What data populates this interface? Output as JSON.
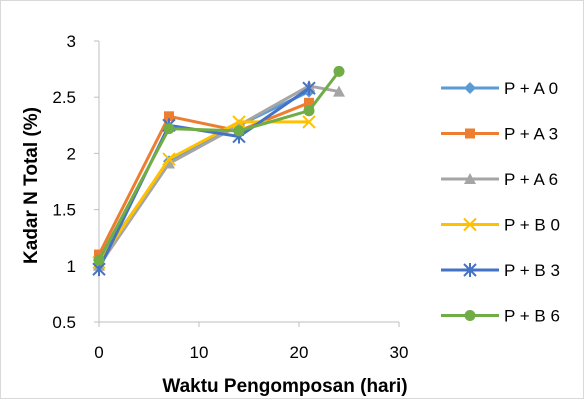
{
  "chart_data": {
    "type": "line",
    "title": "",
    "xlabel": "Waktu Pengomposan (hari)",
    "ylabel": "Kadar N Total (%)",
    "xlim": [
      0,
      30
    ],
    "ylim": [
      0.5,
      3
    ],
    "xticks": [
      0,
      10,
      20,
      30
    ],
    "yticks": [
      0.5,
      1,
      1.5,
      2,
      2.5,
      3
    ],
    "xtick_labels": [
      "0",
      "10",
      "20",
      "30"
    ],
    "ytick_labels": [
      "0.5",
      "1",
      "1.5",
      "2",
      "2.5",
      "3"
    ],
    "grid": false,
    "legend_position": "right",
    "series": [
      {
        "name": "P + A 0",
        "color": "#5B9BD5",
        "marker": "diamond",
        "x": [
          0,
          7,
          14,
          21
        ],
        "y": [
          1.05,
          1.93,
          2.25,
          2.55
        ]
      },
      {
        "name": "P + A 3",
        "color": "#ED7D31",
        "marker": "square",
        "x": [
          0,
          7,
          14,
          21
        ],
        "y": [
          1.1,
          2.33,
          2.2,
          2.45
        ]
      },
      {
        "name": "P + A 6",
        "color": "#A5A5A5",
        "marker": "triangle",
        "x": [
          0,
          7,
          14,
          21,
          24
        ],
        "y": [
          1.0,
          1.91,
          2.25,
          2.6,
          2.55
        ]
      },
      {
        "name": "P + B 0",
        "color": "#FFC000",
        "marker": "x",
        "x": [
          0,
          7,
          14,
          21
        ],
        "y": [
          1.03,
          1.95,
          2.28,
          2.28
        ]
      },
      {
        "name": "P + B 3",
        "color": "#4472C4",
        "marker": "asterisk",
        "x": [
          0,
          7,
          14,
          21
        ],
        "y": [
          0.97,
          2.25,
          2.15,
          2.58
        ]
      },
      {
        "name": "P + B 6",
        "color": "#70AD47",
        "marker": "circle",
        "x": [
          0,
          7,
          14,
          21,
          24
        ],
        "y": [
          1.05,
          2.22,
          2.2,
          2.38,
          2.73
        ]
      }
    ]
  }
}
